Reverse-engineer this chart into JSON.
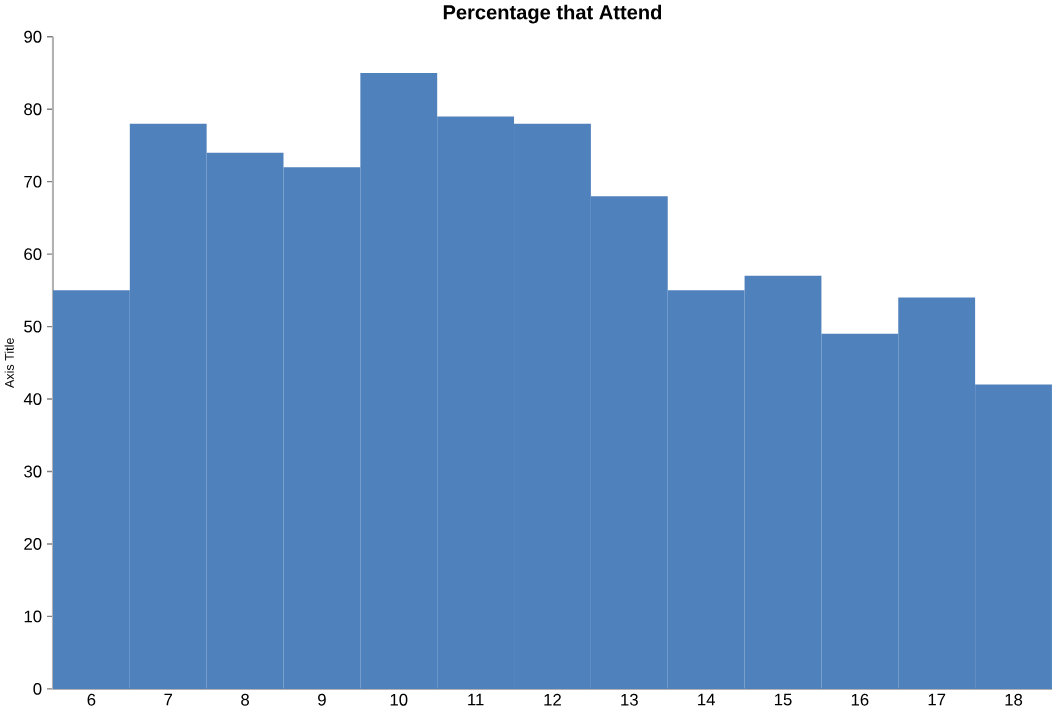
{
  "chart_data": {
    "type": "bar",
    "title": "Percentage that Attend",
    "ylabel": "Axis Title",
    "categories": [
      "6",
      "7",
      "8",
      "9",
      "10",
      "11",
      "12",
      "13",
      "14",
      "15",
      "16",
      "17",
      "18"
    ],
    "values": [
      55,
      78,
      74,
      72,
      85,
      79,
      78,
      68,
      55,
      57,
      49,
      54,
      42
    ],
    "color": "#4f81bd",
    "ylim": [
      0,
      90
    ],
    "yticks": [
      0,
      10,
      20,
      30,
      40,
      50,
      60,
      70,
      80,
      90
    ],
    "grid": false
  }
}
